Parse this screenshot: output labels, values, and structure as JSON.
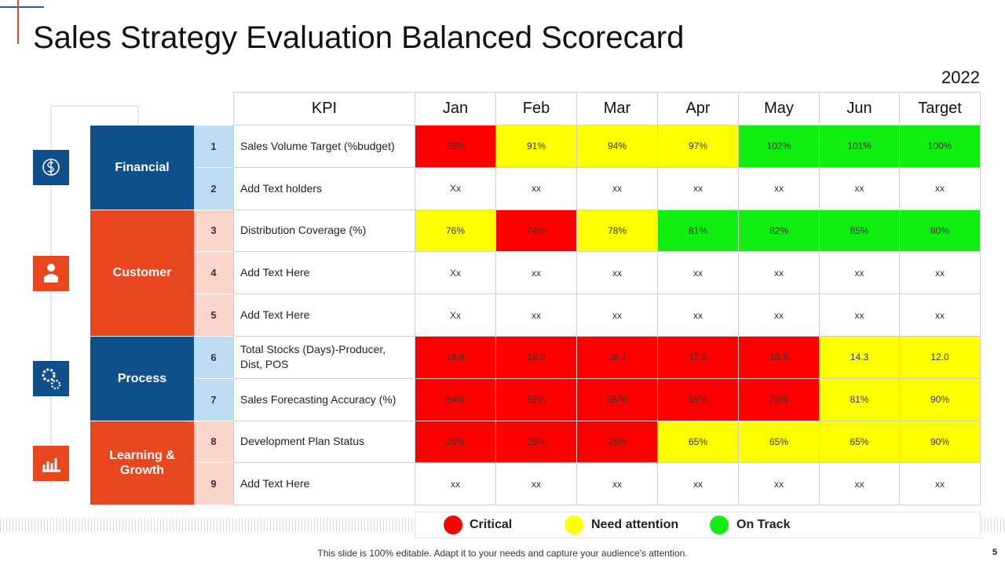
{
  "title": "Sales Strategy Evaluation Balanced Scorecard",
  "year": "2022",
  "table": {
    "header": [
      "KPI",
      "Jan",
      "Feb",
      "Mar",
      "Apr",
      "May",
      "Jun",
      "Target"
    ],
    "groups": [
      {
        "label": "Financial",
        "color": "#0f4f8a",
        "number_color": "#bfdcf5",
        "rows": [
          {
            "number": 1,
            "kpi": "Sales Volume Target (%budget)",
            "cells": [
              {
                "text": "85%",
                "color": "#ff0000"
              },
              {
                "text": "91%",
                "color": "#ffff00"
              },
              {
                "text": "94%",
                "color": "#ffff00"
              },
              {
                "text": "97%",
                "color": "#ffff00"
              },
              {
                "text": "102%",
                "color": "#11ee11"
              },
              {
                "text": "101%",
                "color": "#11ee11"
              },
              {
                "text": "100%",
                "color": "#11ee11"
              }
            ]
          },
          {
            "number": 2,
            "kpi": "Add Text holders",
            "cells": [
              {
                "text": "Xx",
                "color": "#ffffff"
              },
              {
                "text": "xx",
                "color": "#ffffff"
              },
              {
                "text": "xx",
                "color": "#ffffff"
              },
              {
                "text": "xx",
                "color": "#ffffff"
              },
              {
                "text": "xx",
                "color": "#ffffff"
              },
              {
                "text": "xx",
                "color": "#ffffff"
              },
              {
                "text": "xx",
                "color": "#ffffff"
              }
            ]
          }
        ]
      },
      {
        "label": "Customer",
        "color": "#e8461e",
        "number_color": "#fbd5cc",
        "rows": [
          {
            "number": 3,
            "kpi": "Distribution Coverage (%)",
            "cells": [
              {
                "text": "76%",
                "color": "#ffff00"
              },
              {
                "text": "74%",
                "color": "#ff0000"
              },
              {
                "text": "78%",
                "color": "#ffff00"
              },
              {
                "text": "81%",
                "color": "#11ee11"
              },
              {
                "text": "82%",
                "color": "#11ee11"
              },
              {
                "text": "85%",
                "color": "#11ee11"
              },
              {
                "text": "80%",
                "color": "#11ee11"
              }
            ]
          },
          {
            "number": 4,
            "kpi": "Add Text Here",
            "cells": [
              {
                "text": "Xx",
                "color": "#ffffff"
              },
              {
                "text": "xx",
                "color": "#ffffff"
              },
              {
                "text": "xx",
                "color": "#ffffff"
              },
              {
                "text": "xx",
                "color": "#ffffff"
              },
              {
                "text": "xx",
                "color": "#ffffff"
              },
              {
                "text": "xx",
                "color": "#ffffff"
              },
              {
                "text": "xx",
                "color": "#ffffff"
              }
            ]
          },
          {
            "number": 5,
            "kpi": "Add Text Here",
            "cells": [
              {
                "text": "Xx",
                "color": "#ffffff"
              },
              {
                "text": "xx",
                "color": "#ffffff"
              },
              {
                "text": "xx",
                "color": "#ffffff"
              },
              {
                "text": "xx",
                "color": "#ffffff"
              },
              {
                "text": "xx",
                "color": "#ffffff"
              },
              {
                "text": "xx",
                "color": "#ffffff"
              },
              {
                "text": "xx",
                "color": "#ffffff"
              }
            ]
          }
        ]
      },
      {
        "label": "Process",
        "color": "#0f4f8a",
        "number_color": "#bfdcf5",
        "rows": [
          {
            "number": 6,
            "kpi": "Total Stocks (Days)-Producer, Dist, POS",
            "cells": [
              {
                "text": "18.6",
                "color": "#ff0000"
              },
              {
                "text": "18.9",
                "color": "#ff0000"
              },
              {
                "text": "16.7",
                "color": "#ff0000"
              },
              {
                "text": "17.5",
                "color": "#ff0000"
              },
              {
                "text": "15.5",
                "color": "#ff0000"
              },
              {
                "text": "14.3",
                "color": "#ffff00"
              },
              {
                "text": "12.0",
                "color": "#ffff00"
              }
            ]
          },
          {
            "number": 7,
            "kpi": "Sales Forecasting Accuracy (%)",
            "cells": [
              {
                "text": "64%",
                "color": "#ff0000"
              },
              {
                "text": "59%",
                "color": "#ff0000"
              },
              {
                "text": "58/%",
                "color": "#ff0000"
              },
              {
                "text": "65%",
                "color": "#ff0000"
              },
              {
                "text": "76%",
                "color": "#ff0000"
              },
              {
                "text": "81%",
                "color": "#ffff00"
              },
              {
                "text": "90%",
                "color": "#ffff00"
              }
            ]
          }
        ]
      },
      {
        "label": "Learning & Growth",
        "color": "#e8461e",
        "number_color": "#fbd5cc",
        "rows": [
          {
            "number": 8,
            "kpi": "Development Plan Status",
            "cells": [
              {
                "text": "25%",
                "color": "#ff0000"
              },
              {
                "text": "25%",
                "color": "#ff0000"
              },
              {
                "text": "25%",
                "color": "#ff0000"
              },
              {
                "text": "65%",
                "color": "#ffff00"
              },
              {
                "text": "65%",
                "color": "#ffff00"
              },
              {
                "text": "65%",
                "color": "#ffff00"
              },
              {
                "text": "90%",
                "color": "#ffff00"
              }
            ]
          },
          {
            "number": 9,
            "kpi": "Add Text Here",
            "cells": [
              {
                "text": "xx",
                "color": "#ffffff"
              },
              {
                "text": "xx",
                "color": "#ffffff"
              },
              {
                "text": "xx",
                "color": "#ffffff"
              },
              {
                "text": "xx",
                "color": "#ffffff"
              },
              {
                "text": "xx",
                "color": "#ffffff"
              },
              {
                "text": "xx",
                "color": "#ffffff"
              },
              {
                "text": "xx",
                "color": "#ffffff"
              }
            ]
          }
        ]
      }
    ]
  },
  "legend": [
    {
      "name": "Critical",
      "color": "#ff0000"
    },
    {
      "name": "Need attention",
      "color": "#ffff00"
    },
    {
      "name": "On Track",
      "color": "#11ee11"
    }
  ],
  "footer": "This slide is 100% editable. Adapt it to your needs and capture your audience's attention.",
  "page_number": 5
}
